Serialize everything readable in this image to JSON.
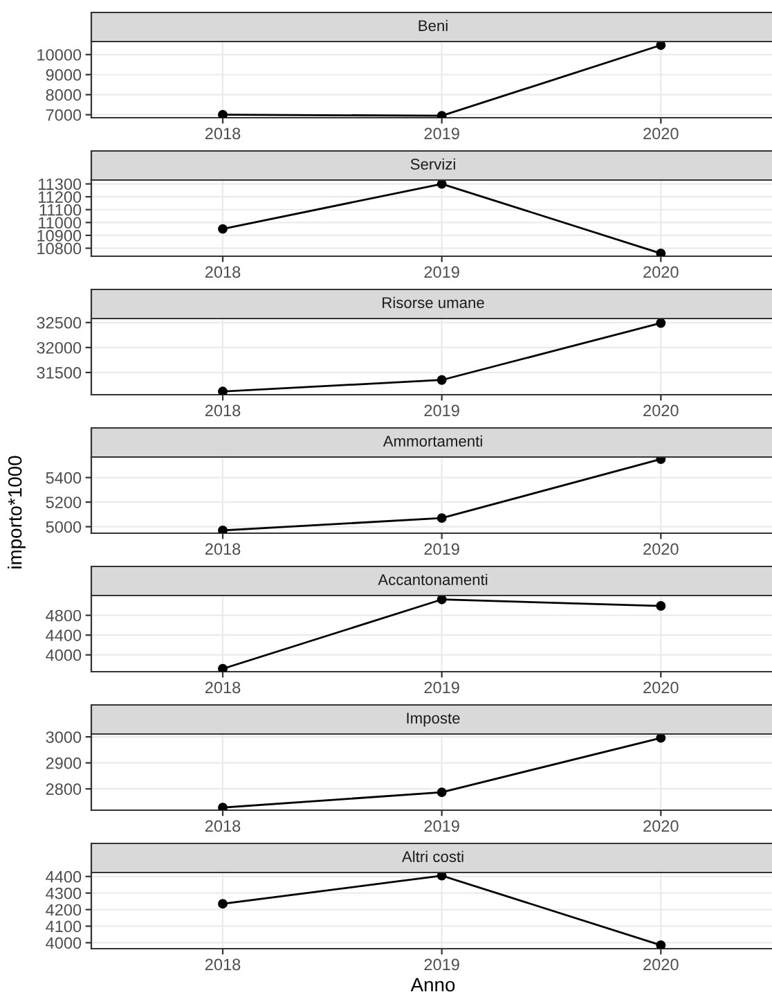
{
  "chart_data": [
    {
      "type": "line",
      "title": "Beni",
      "x": [
        2018,
        2019,
        2020
      ],
      "series": [
        {
          "color": "#000000",
          "values": [
            7000,
            6950,
            10470
          ]
        }
      ],
      "xlim": [
        2017.4,
        2020.52
      ],
      "xticks": [
        2018,
        2019,
        2020
      ],
      "ylim": [
        6850,
        10650
      ],
      "yticks": [
        7000,
        8000,
        9000,
        10000
      ],
      "grid": true,
      "marker": "circle",
      "line_style": "solid"
    },
    {
      "type": "line",
      "title": "Servizi",
      "x": [
        2018,
        2019,
        2020
      ],
      "series": [
        {
          "color": "#000000",
          "values": [
            10950,
            11300,
            10760
          ]
        }
      ],
      "xlim": [
        2017.4,
        2020.52
      ],
      "xticks": [
        2018,
        2019,
        2020
      ],
      "ylim": [
        10738,
        11330
      ],
      "yticks": [
        10800,
        10900,
        11000,
        11100,
        11200,
        11300
      ],
      "grid": true,
      "marker": "circle",
      "line_style": "solid"
    },
    {
      "type": "line",
      "title": "Risorse umane",
      "x": [
        2018,
        2019,
        2020
      ],
      "series": [
        {
          "color": "#000000",
          "values": [
            31120,
            31350,
            32490
          ]
        }
      ],
      "xlim": [
        2017.4,
        2020.52
      ],
      "xticks": [
        2018,
        2019,
        2020
      ],
      "ylim": [
        31055,
        32580
      ],
      "yticks": [
        31500,
        32000,
        32500
      ],
      "grid": true,
      "marker": "circle",
      "line_style": "solid"
    },
    {
      "type": "line",
      "title": "Ammortamenti",
      "ylabel": "importo*1000",
      "x": [
        2018,
        2019,
        2020
      ],
      "series": [
        {
          "color": "#000000",
          "values": [
            4970,
            5070,
            5550
          ]
        }
      ],
      "xlim": [
        2017.4,
        2020.52
      ],
      "xticks": [
        2018,
        2019,
        2020
      ],
      "ylim": [
        4947,
        5567
      ],
      "yticks": [
        5000,
        5200,
        5400
      ],
      "grid": true,
      "marker": "circle",
      "line_style": "solid"
    },
    {
      "type": "line",
      "title": "Accantonamenti",
      "x": [
        2018,
        2019,
        2020
      ],
      "series": [
        {
          "color": "#000000",
          "values": [
            3720,
            5120,
            4990
          ]
        }
      ],
      "xlim": [
        2017.4,
        2020.52
      ],
      "xticks": [
        2018,
        2019,
        2020
      ],
      "ylim": [
        3660,
        5200
      ],
      "yticks": [
        4000,
        4400,
        4800
      ],
      "grid": true,
      "marker": "circle",
      "line_style": "solid"
    },
    {
      "type": "line",
      "title": "Imposte",
      "x": [
        2018,
        2019,
        2020
      ],
      "series": [
        {
          "color": "#000000",
          "values": [
            2728,
            2787,
            2996
          ]
        }
      ],
      "xlim": [
        2017.4,
        2020.52
      ],
      "xticks": [
        2018,
        2019,
        2020
      ],
      "ylim": [
        2718,
        3011
      ],
      "yticks": [
        2800,
        2900,
        3000
      ],
      "grid": true,
      "marker": "circle",
      "line_style": "solid"
    },
    {
      "type": "line",
      "title": "Altri costi",
      "xlabel": "Anno",
      "x": [
        2018,
        2019,
        2020
      ],
      "series": [
        {
          "color": "#000000",
          "values": [
            4235,
            4405,
            3985
          ]
        }
      ],
      "xlim": [
        2017.4,
        2020.52
      ],
      "xticks": [
        2018,
        2019,
        2020
      ],
      "ylim": [
        3964,
        4424
      ],
      "yticks": [
        4000,
        4100,
        4200,
        4300,
        4400
      ],
      "grid": true,
      "marker": "circle",
      "line_style": "solid"
    }
  ]
}
